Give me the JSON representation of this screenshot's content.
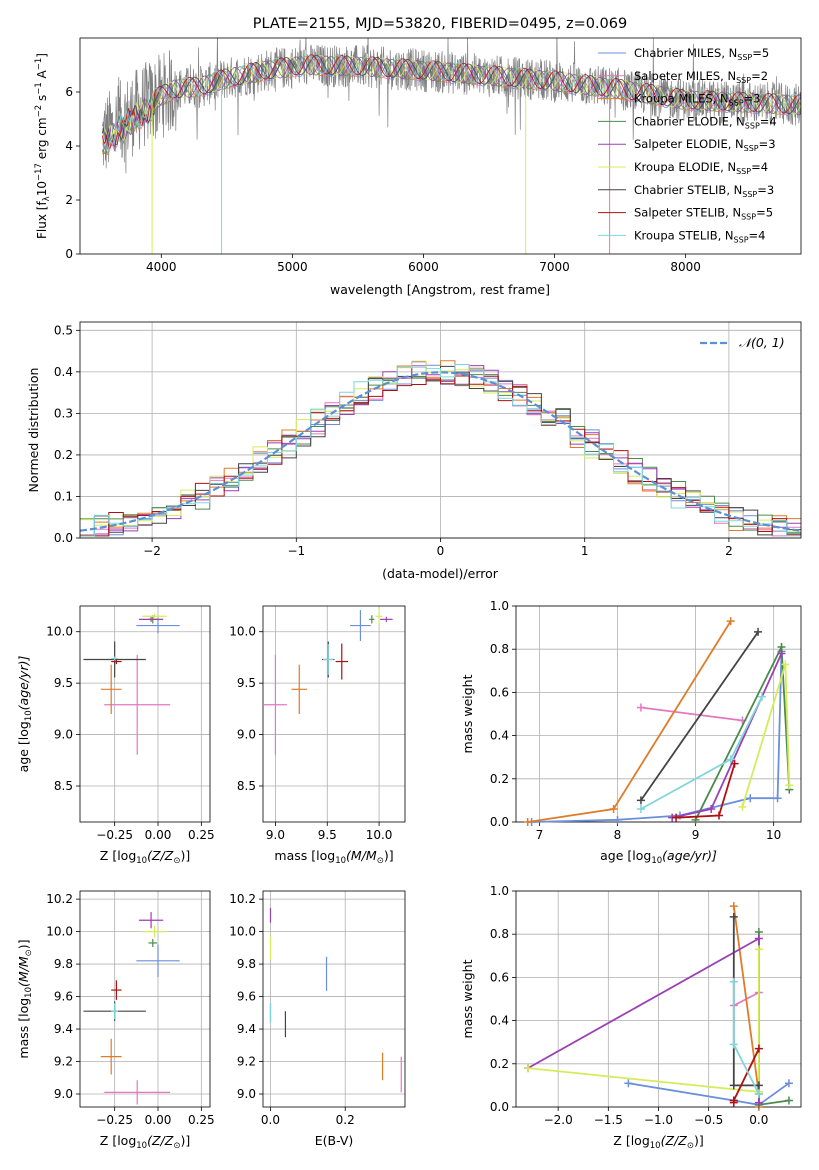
{
  "colors": {
    "chabrier_miles": "#6a8fdd",
    "salpeter_miles": "#e377c2",
    "kroupa_miles": "#e07b28",
    "chabrier_elodie": "#4c8a4c",
    "salpeter_elodie": "#9b3fb5",
    "kroupa_elodie": "#d4ec5a",
    "chabrier_stelib": "#444444",
    "salpeter_stelib": "#b01010",
    "kroupa_stelib": "#7fd6dc",
    "data": "#808080",
    "normal": "#5b8fd6"
  },
  "chart_data": [
    {
      "type": "line",
      "id": "spectrum",
      "title": "PLATE=2155, MJD=53820, FIBERID=0495, z=0.069",
      "xlabel": "wavelength [Angstrom, rest frame]",
      "ylabel_parts": [
        "Flux [f",
        "λ",
        "10",
        "−17",
        " erg cm",
        "−2",
        " s",
        "−1",
        " A",
        "−1",
        "]"
      ],
      "xlim": [
        3380,
        8880
      ],
      "ylim": [
        0,
        8
      ],
      "xticks": [
        4000,
        5000,
        6000,
        7000,
        8000
      ],
      "yticks": [
        0,
        2,
        4,
        6
      ],
      "xtick_labels": [
        "4000",
        "5000",
        "6000",
        "7000",
        "8000"
      ],
      "ytick_labels": [
        "0",
        "2",
        "4",
        "6"
      ],
      "data_range": [
        3550,
        8900
      ],
      "continuum": [
        [
          3550,
          4.3
        ],
        [
          3700,
          4.9
        ],
        [
          3900,
          5.6
        ],
        [
          4100,
          6.1
        ],
        [
          4300,
          6.2
        ],
        [
          4500,
          6.5
        ],
        [
          4800,
          6.8
        ],
        [
          5100,
          7.0
        ],
        [
          5500,
          6.95
        ],
        [
          6000,
          6.8
        ],
        [
          6500,
          6.6
        ],
        [
          7000,
          6.4
        ],
        [
          7500,
          6.1
        ],
        [
          8000,
          5.7
        ],
        [
          8500,
          5.6
        ],
        [
          8900,
          5.5
        ]
      ],
      "legend": [
        {
          "key": "chabrier_miles",
          "label": "Chabrier MILES, N",
          "sub": "SSP",
          "tail": "=5"
        },
        {
          "key": "salpeter_miles",
          "label": "Salpeter MILES, N",
          "sub": "SSP",
          "tail": "=2"
        },
        {
          "key": "kroupa_miles",
          "label": "Kroupa MILES, N",
          "sub": "SSP",
          "tail": "=3"
        },
        {
          "key": "chabrier_elodie",
          "label": "Chabrier ELODIE, N",
          "sub": "SSP",
          "tail": "=4"
        },
        {
          "key": "salpeter_elodie",
          "label": "Salpeter ELODIE, N",
          "sub": "SSP",
          "tail": "=3"
        },
        {
          "key": "kroupa_elodie",
          "label": "Kroupa ELODIE, N",
          "sub": "SSP",
          "tail": "=4"
        },
        {
          "key": "chabrier_stelib",
          "label": "Chabrier STELIB, N",
          "sub": "SSP",
          "tail": "=3"
        },
        {
          "key": "salpeter_stelib",
          "label": "Salpeter STELIB, N",
          "sub": "SSP",
          "tail": "=5"
        },
        {
          "key": "kroupa_stelib",
          "label": "Kroupa STELIB, N",
          "sub": "SSP",
          "tail": "=4"
        }
      ]
    },
    {
      "type": "bar",
      "id": "residuals",
      "xlabel": "(data-model)/error",
      "ylabel": "Normed distribution",
      "xlim": [
        -2.5,
        2.5
      ],
      "ylim": [
        0,
        0.52
      ],
      "xticks": [
        -2,
        -1,
        0,
        1,
        2
      ],
      "xtick_labels": [
        "−2",
        "−1",
        "0",
        "1",
        "2"
      ],
      "yticks": [
        0.0,
        0.1,
        0.2,
        0.3,
        0.4,
        0.5
      ],
      "ytick_labels": [
        "0.0",
        "0.1",
        "0.2",
        "0.3",
        "0.4",
        "0.5"
      ],
      "bin_width": 0.1,
      "legend": [
        {
          "label": "𝒩(0, 1)"
        }
      ]
    },
    {
      "type": "scatter",
      "id": "age_vs_z",
      "xlabel_parts": [
        "Z [log",
        "10",
        "(Z/Z",
        "⊙",
        ")]"
      ],
      "ylabel_parts": [
        "age  [log",
        "10",
        "(age/yr)]"
      ],
      "xlim": [
        -0.45,
        0.3
      ],
      "ylim": [
        8.15,
        10.25
      ],
      "xticks": [
        -0.25,
        0.0,
        0.25
      ],
      "xtick_labels": [
        "−0.25",
        "0.00",
        "0.25"
      ],
      "yticks": [
        8.5,
        9.0,
        9.5,
        10.0
      ],
      "ytick_labels": [
        "8.5",
        "9.0",
        "9.5",
        "10.0"
      ],
      "points": [
        {
          "key": "chabrier_miles",
          "x": 0.0,
          "y": 10.06,
          "xerr": 0.25,
          "yerr": 0.15
        },
        {
          "key": "salpeter_miles",
          "x": -0.12,
          "y": 9.29,
          "xerr": 0.38,
          "yerr": 0.97
        },
        {
          "key": "kroupa_miles",
          "x": -0.27,
          "y": 9.44,
          "xerr": 0.12,
          "yerr": 0.48
        },
        {
          "key": "chabrier_elodie",
          "x": -0.03,
          "y": 10.12,
          "xerr": 0.05,
          "yerr": 0.08
        },
        {
          "key": "salpeter_elodie",
          "x": -0.04,
          "y": 10.12,
          "xerr": 0.14,
          "yerr": 0.05
        },
        {
          "key": "kroupa_elodie",
          "x": -0.02,
          "y": 10.15,
          "xerr": 0.14,
          "yerr": 0.05
        },
        {
          "key": "chabrier_stelib",
          "x": -0.25,
          "y": 9.73,
          "xerr": 0.36,
          "yerr": 0.35
        },
        {
          "key": "salpeter_stelib",
          "x": -0.24,
          "y": 9.71,
          "xerr": 0.06,
          "yerr": 0.05
        },
        {
          "key": "kroupa_stelib",
          "x": -0.25,
          "y": 9.74,
          "xerr": 0.04,
          "yerr": 0.04
        }
      ]
    },
    {
      "type": "scatter",
      "id": "age_vs_mass",
      "xlabel_parts": [
        "mass [log",
        "10",
        "(M/M",
        "⊙",
        ")]"
      ],
      "xlim": [
        8.88,
        10.25
      ],
      "ylim": [
        8.15,
        10.25
      ],
      "xticks": [
        9.0,
        9.5,
        10.0
      ],
      "xtick_labels": [
        "9.0",
        "9.5",
        "10.0"
      ],
      "yticks": [
        8.5,
        9.0,
        9.5,
        10.0
      ],
      "ytick_labels": [
        "8.5",
        "9.0",
        "9.5",
        "10.0"
      ],
      "points": [
        {
          "key": "chabrier_miles",
          "x": 9.82,
          "y": 10.06,
          "xerr": 0.2,
          "yerr": 0.3
        },
        {
          "key": "salpeter_miles",
          "x": 9.0,
          "y": 9.29,
          "xerr": 0.22,
          "yerr": 0.97
        },
        {
          "key": "kroupa_miles",
          "x": 9.23,
          "y": 9.44,
          "xerr": 0.15,
          "yerr": 0.48
        },
        {
          "key": "chabrier_elodie",
          "x": 9.93,
          "y": 10.12,
          "xerr": 0.05,
          "yerr": 0.08
        },
        {
          "key": "salpeter_elodie",
          "x": 10.07,
          "y": 10.12,
          "xerr": 0.12,
          "yerr": 0.05
        },
        {
          "key": "kroupa_elodie",
          "x": 10.0,
          "y": 10.15,
          "xerr": 0.07,
          "yerr": 0.15
        },
        {
          "key": "chabrier_stelib",
          "x": 9.51,
          "y": 9.73,
          "xerr": 0.12,
          "yerr": 0.35
        },
        {
          "key": "salpeter_stelib",
          "x": 9.64,
          "y": 9.71,
          "xerr": 0.12,
          "yerr": 0.35
        },
        {
          "key": "kroupa_stelib",
          "x": 9.51,
          "y": 9.73,
          "xerr": 0.1,
          "yerr": 0.3
        }
      ]
    },
    {
      "type": "line",
      "id": "massweight_vs_age",
      "xlabel_parts": [
        "age  [log",
        "10",
        "(age/yr)]"
      ],
      "ylabel": "mass weight",
      "xlim": [
        6.7,
        10.35
      ],
      "ylim": [
        0,
        1
      ],
      "xticks": [
        7,
        8,
        9,
        10
      ],
      "xtick_labels": [
        "7",
        "8",
        "9",
        "10"
      ],
      "yticks": [
        0.0,
        0.2,
        0.4,
        0.6,
        0.8,
        1.0
      ],
      "ytick_labels": [
        "0.0",
        "0.2",
        "0.4",
        "0.6",
        "0.8",
        "1.0"
      ],
      "series": [
        {
          "key": "chabrier_miles",
          "points": [
            [
              6.9,
              0.0
            ],
            [
              8.0,
              0.01
            ],
            [
              8.8,
              0.03
            ],
            [
              9.7,
              0.11
            ],
            [
              10.05,
              0.11
            ],
            [
              10.1,
              0.79
            ]
          ]
        },
        {
          "key": "salpeter_miles",
          "points": [
            [
              8.3,
              0.53
            ],
            [
              9.6,
              0.47
            ]
          ]
        },
        {
          "key": "kroupa_miles",
          "points": [
            [
              6.85,
              0.0
            ],
            [
              7.95,
              0.06
            ],
            [
              9.45,
              0.93
            ]
          ]
        },
        {
          "key": "chabrier_elodie",
          "points": [
            [
              9.0,
              0.01
            ],
            [
              10.1,
              0.81
            ],
            [
              10.2,
              0.15
            ]
          ]
        },
        {
          "key": "salpeter_elodie",
          "points": [
            [
              8.7,
              0.02
            ],
            [
              9.2,
              0.06
            ],
            [
              10.1,
              0.78
            ]
          ]
        },
        {
          "key": "kroupa_elodie",
          "points": [
            [
              9.6,
              0.07
            ],
            [
              10.15,
              0.73
            ],
            [
              10.2,
              0.17
            ]
          ]
        },
        {
          "key": "chabrier_stelib",
          "points": [
            [
              8.3,
              0.1
            ],
            [
              9.8,
              0.88
            ]
          ]
        },
        {
          "key": "salpeter_stelib",
          "points": [
            [
              8.75,
              0.02
            ],
            [
              9.3,
              0.03
            ],
            [
              9.5,
              0.27
            ]
          ]
        },
        {
          "key": "kroupa_stelib",
          "points": [
            [
              8.3,
              0.06
            ],
            [
              9.45,
              0.29
            ],
            [
              9.85,
              0.58
            ]
          ]
        }
      ]
    },
    {
      "type": "scatter",
      "id": "mass_vs_z",
      "xlabel_parts": [
        "Z [log",
        "10",
        "(Z/Z",
        "⊙",
        ")]"
      ],
      "ylabel_parts": [
        "mass [log",
        "10",
        "(M/M",
        "⊙",
        ")]"
      ],
      "xlim": [
        -0.45,
        0.3
      ],
      "ylim": [
        8.92,
        10.25
      ],
      "xticks": [
        -0.25,
        0.0,
        0.25
      ],
      "xtick_labels": [
        "−0.25",
        "0.00",
        "0.25"
      ],
      "yticks": [
        9.0,
        9.2,
        9.4,
        9.6,
        9.8,
        10.0,
        10.2
      ],
      "ytick_labels": [
        "9.0",
        "9.2",
        "9.4",
        "9.6",
        "9.8",
        "10.0",
        "10.2"
      ],
      "points": [
        {
          "key": "chabrier_miles",
          "x": 0.0,
          "y": 9.82,
          "xerr": 0.25,
          "yerr": 0.2
        },
        {
          "key": "salpeter_miles",
          "x": -0.12,
          "y": 9.01,
          "xerr": 0.38,
          "yerr": 0.15
        },
        {
          "key": "kroupa_miles",
          "x": -0.27,
          "y": 9.23,
          "xerr": 0.12,
          "yerr": 0.22
        },
        {
          "key": "chabrier_elodie",
          "x": -0.03,
          "y": 9.93,
          "xerr": 0.05,
          "yerr": 0.05
        },
        {
          "key": "salpeter_elodie",
          "x": -0.04,
          "y": 10.07,
          "xerr": 0.14,
          "yerr": 0.1
        },
        {
          "key": "kroupa_elodie",
          "x": -0.02,
          "y": 10.0,
          "xerr": 0.14,
          "yerr": 0.07
        },
        {
          "key": "chabrier_stelib",
          "x": -0.25,
          "y": 9.51,
          "xerr": 0.36,
          "yerr": 0.12
        },
        {
          "key": "salpeter_stelib",
          "x": -0.24,
          "y": 9.64,
          "xerr": 0.06,
          "yerr": 0.12
        },
        {
          "key": "kroupa_stelib",
          "x": -0.25,
          "y": 9.51,
          "xerr": 0.04,
          "yerr": 0.1
        }
      ]
    },
    {
      "type": "scatter",
      "id": "mass_vs_ebv",
      "xlabel": "E(B-V)",
      "xlim": [
        -0.02,
        0.36
      ],
      "ylim": [
        8.92,
        10.25
      ],
      "xticks": [
        0.0,
        0.2
      ],
      "xtick_labels": [
        "0.0",
        "0.2"
      ],
      "yticks": [
        9.0,
        9.2,
        9.4,
        9.6,
        9.8,
        10.0,
        10.2
      ],
      "ytick_labels": [
        "9.0",
        "9.2",
        "9.4",
        "9.6",
        "9.8",
        "10.0",
        "10.2"
      ],
      "points": [
        {
          "key": "chabrier_miles",
          "x": 0.15,
          "y": 9.74,
          "xerr": 0.0,
          "yerr": 0.21
        },
        {
          "key": "salpeter_miles",
          "x": 0.35,
          "y": 9.12,
          "xerr": 0.0,
          "yerr": 0.22
        },
        {
          "key": "kroupa_miles",
          "x": 0.3,
          "y": 9.17,
          "xerr": 0.0,
          "yerr": 0.17
        },
        {
          "key": "chabrier_elodie",
          "x": 0.0,
          "y": 9.5,
          "xerr": 0.0,
          "yerr": 0.12
        },
        {
          "key": "salpeter_elodie",
          "x": 0.0,
          "y": 10.1,
          "xerr": 0.0,
          "yerr": 0.09
        },
        {
          "key": "kroupa_elodie",
          "x": 0.0,
          "y": 9.9,
          "xerr": 0.0,
          "yerr": 0.15
        },
        {
          "key": "chabrier_stelib",
          "x": 0.04,
          "y": 9.43,
          "xerr": 0.0,
          "yerr": 0.16
        },
        {
          "key": "salpeter_stelib",
          "x": 0.0,
          "y": 9.64,
          "xerr": 0.0,
          "yerr": 0.0
        },
        {
          "key": "kroupa_stelib",
          "x": 0.0,
          "y": 9.5,
          "xerr": 0.0,
          "yerr": 0.12
        }
      ]
    },
    {
      "type": "line",
      "id": "massweight_vs_z",
      "xlabel_parts": [
        "Z [log",
        "10",
        "(Z/Z",
        "⊙",
        ")]"
      ],
      "ylabel": "mass weight",
      "xlim": [
        -2.42,
        0.42
      ],
      "ylim": [
        0,
        1
      ],
      "xticks": [
        -2.0,
        -1.5,
        -1.0,
        -0.5,
        0.0
      ],
      "xtick_labels": [
        "−2.0",
        "−1.5",
        "−1.0",
        "−0.5",
        "0.0"
      ],
      "yticks": [
        0.0,
        0.2,
        0.4,
        0.6,
        0.8,
        1.0
      ],
      "ytick_labels": [
        "0.0",
        "0.2",
        "0.4",
        "0.6",
        "0.8",
        "1.0"
      ],
      "series": [
        {
          "key": "chabrier_miles",
          "points": [
            [
              -1.3,
              0.11
            ],
            [
              -0.25,
              0.03
            ],
            [
              0.0,
              0.01
            ],
            [
              0.3,
              0.11
            ]
          ]
        },
        {
          "key": "salpeter_miles",
          "points": [
            [
              -0.25,
              0.47
            ],
            [
              0.0,
              0.53
            ]
          ]
        },
        {
          "key": "kroupa_miles",
          "points": [
            [
              -0.25,
              0.93
            ],
            [
              0.0,
              0.06
            ],
            [
              0.0,
              0.0
            ]
          ]
        },
        {
          "key": "chabrier_elodie",
          "points": [
            [
              0.0,
              0.81
            ],
            [
              0.0,
              0.01
            ],
            [
              0.3,
              0.03
            ]
          ]
        },
        {
          "key": "salpeter_elodie",
          "points": [
            [
              -2.3,
              0.18
            ],
            [
              0.0,
              0.78
            ],
            [
              0.0,
              0.02
            ]
          ]
        },
        {
          "key": "kroupa_elodie",
          "points": [
            [
              -2.3,
              0.18
            ],
            [
              0.0,
              0.07
            ],
            [
              0.0,
              0.73
            ]
          ]
        },
        {
          "key": "chabrier_stelib",
          "points": [
            [
              -0.25,
              0.88
            ],
            [
              -0.25,
              0.1
            ],
            [
              0.0,
              0.1
            ]
          ]
        },
        {
          "key": "salpeter_stelib",
          "points": [
            [
              -0.25,
              0.02
            ],
            [
              -0.25,
              0.03
            ],
            [
              0.0,
              0.27
            ]
          ]
        },
        {
          "key": "kroupa_stelib",
          "points": [
            [
              -0.25,
              0.58
            ],
            [
              -0.25,
              0.29
            ],
            [
              0.0,
              0.06
            ]
          ]
        }
      ]
    }
  ]
}
